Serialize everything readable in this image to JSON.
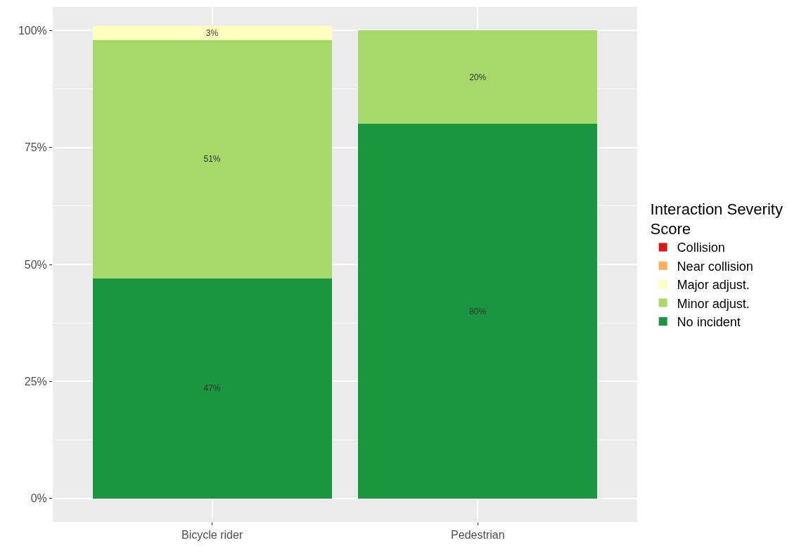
{
  "chart_data": {
    "type": "bar",
    "stacked": true,
    "categories": [
      "Bicycle rider",
      "Pedestrian"
    ],
    "legend_title": "Interaction Severity Score",
    "series": [
      {
        "name": "No incident",
        "color": "#1a9641",
        "values": [
          47,
          80
        ],
        "value_labels": [
          "47%",
          "80%"
        ]
      },
      {
        "name": "Minor adjust.",
        "color": "#a6d96a",
        "values": [
          51,
          20
        ],
        "value_labels": [
          "51%",
          "20%"
        ]
      },
      {
        "name": "Major adjust.",
        "color": "#ffffbf",
        "values": [
          3,
          0
        ],
        "value_labels": [
          "3%",
          null
        ]
      },
      {
        "name": "Near collision",
        "color": "#fdae61",
        "values": [
          0,
          0
        ],
        "value_labels": [
          null,
          null
        ]
      },
      {
        "name": "Collision",
        "color": "#d7191c",
        "values": [
          0,
          0
        ],
        "value_labels": [
          null,
          null
        ]
      }
    ],
    "ylim": [
      -5,
      105
    ],
    "yticks": [
      {
        "value": 0,
        "label": "0%"
      },
      {
        "value": 25,
        "label": "25%"
      },
      {
        "value": 50,
        "label": "50%"
      },
      {
        "value": 75,
        "label": "75%"
      },
      {
        "value": 100,
        "label": "100%"
      }
    ],
    "grid": true,
    "legend": "right"
  }
}
